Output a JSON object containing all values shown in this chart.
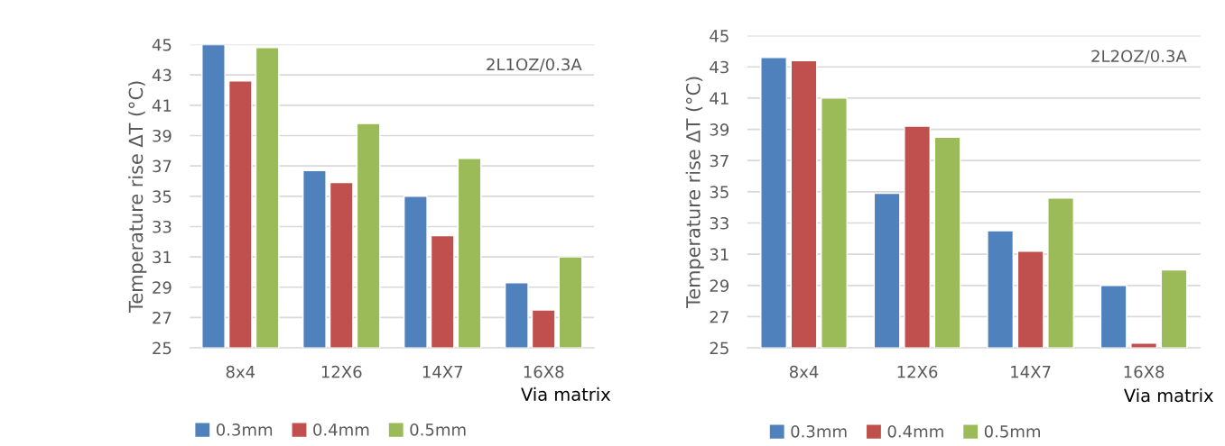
{
  "chart_data": [
    {
      "type": "bar",
      "categories": [
        "8x4",
        "12X6",
        "14X7",
        "16X8"
      ],
      "xlabel": "Via matrix",
      "ylabel": "Temperature rise ΔT (°C)",
      "annotations": [
        "2L1OZ/0.3A"
      ],
      "ylim": [
        25,
        45
      ],
      "yticks": [
        25,
        27,
        29,
        31,
        33,
        35,
        37,
        39,
        41,
        43,
        45
      ],
      "grid": "y",
      "legend": "bottom",
      "series": [
        {
          "name": "0.3mm",
          "color": "#4f81bd",
          "values": [
            45.0,
            36.7,
            35.0,
            29.3
          ]
        },
        {
          "name": "0.4mm",
          "color": "#c0504d",
          "values": [
            42.6,
            35.9,
            32.4,
            27.5
          ]
        },
        {
          "name": "0.5mm",
          "color": "#9bbb59",
          "values": [
            44.8,
            39.8,
            37.5,
            31.0
          ]
        }
      ]
    },
    {
      "type": "bar",
      "categories": [
        "8x4",
        "12X6",
        "14X7",
        "16X8"
      ],
      "xlabel": "Via matrix",
      "ylabel": "Temperature rise ΔT (°C)",
      "annotations": [
        "2L2OZ/0.3A"
      ],
      "ylim": [
        25,
        45
      ],
      "yticks": [
        25,
        27,
        29,
        31,
        33,
        35,
        37,
        39,
        41,
        43,
        45
      ],
      "grid": "y",
      "legend": "bottom",
      "series": [
        {
          "name": "0.3mm",
          "color": "#4f81bd",
          "values": [
            43.6,
            34.9,
            32.5,
            29.0
          ]
        },
        {
          "name": "0.4mm",
          "color": "#c0504d",
          "values": [
            43.4,
            39.2,
            31.2,
            25.3
          ]
        },
        {
          "name": "0.5mm",
          "color": "#9bbb59",
          "values": [
            41.0,
            38.5,
            34.6,
            30.0
          ]
        }
      ]
    }
  ]
}
